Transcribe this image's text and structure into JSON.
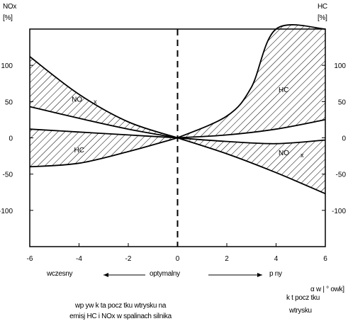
{
  "left_axis": {
    "label_top": "NOx",
    "label_unit": "[%]"
  },
  "right_axis": {
    "label_top": "HC",
    "label_unit": "[%]"
  },
  "direction": {
    "early": "wczesny",
    "optimal": "optymalny",
    "late": "p ny"
  },
  "x_title": {
    "line1": "α w  |  ° owk]",
    "line2": "k t pocz tku",
    "line3": "wtrysku"
  },
  "caption": {
    "line1": "wp yw k ta pocz tku wtrysku na",
    "line2": "emisj  HC i NOx w spalinach silnika"
  },
  "colors": {
    "ink": "#000000",
    "background": "#ffffff"
  },
  "chart_data": {
    "type": "area",
    "xlim": [
      -6,
      6
    ],
    "ylim": [
      -150,
      150
    ],
    "x_ticks": [
      "-6",
      "-4",
      "-2",
      "0",
      "2",
      "4",
      "6"
    ],
    "y_ticks_left": [
      "100",
      "50",
      "0",
      "-50",
      "-100"
    ],
    "y_ticks_right": [
      "100",
      "50",
      "0",
      "-50",
      "-100"
    ],
    "vertical_marker_x": 0,
    "grid": false,
    "bands": [
      {
        "name": "NO x",
        "label_pos": "left",
        "hatch": true,
        "upper": {
          "x": [
            -6,
            -4,
            -2,
            0
          ],
          "y": [
            112,
            60,
            22,
            0
          ]
        },
        "lower": {
          "x": [
            -6,
            -4,
            -2,
            0
          ],
          "y": [
            43,
            27,
            12,
            0
          ]
        }
      },
      {
        "name": "HC",
        "label_pos": "left",
        "hatch": true,
        "upper": {
          "x": [
            -6,
            -4,
            -2,
            0
          ],
          "y": [
            12,
            8,
            4,
            0
          ]
        },
        "lower": {
          "x": [
            -6,
            -4,
            -2,
            0
          ],
          "y": [
            -40,
            -35,
            -19,
            0
          ]
        }
      },
      {
        "name": "HC",
        "label_pos": "right",
        "hatch": true,
        "upper": {
          "x": [
            0,
            2,
            3,
            4,
            6
          ],
          "y": [
            0,
            30,
            70,
            150,
            150
          ]
        },
        "lower": {
          "x": [
            0,
            2,
            4,
            6
          ],
          "y": [
            0,
            4,
            12,
            25
          ]
        }
      },
      {
        "name": "NO x",
        "label_pos": "right",
        "hatch": true,
        "upper": {
          "x": [
            0,
            2,
            4,
            6
          ],
          "y": [
            0,
            -5,
            -8,
            -3
          ]
        },
        "lower": {
          "x": [
            0,
            2,
            4,
            6
          ],
          "y": [
            0,
            -22,
            -48,
            -77
          ]
        }
      }
    ],
    "series_labels": [
      {
        "text": "NO",
        "sub": "x",
        "x": -4.3,
        "y": 50
      },
      {
        "text": "HC",
        "sub": "",
        "x": -4.2,
        "y": -20
      },
      {
        "text": "HC",
        "sub": "",
        "x": 4.1,
        "y": 63
      },
      {
        "text": "NO",
        "sub": "x",
        "x": 4.1,
        "y": -24
      }
    ]
  }
}
